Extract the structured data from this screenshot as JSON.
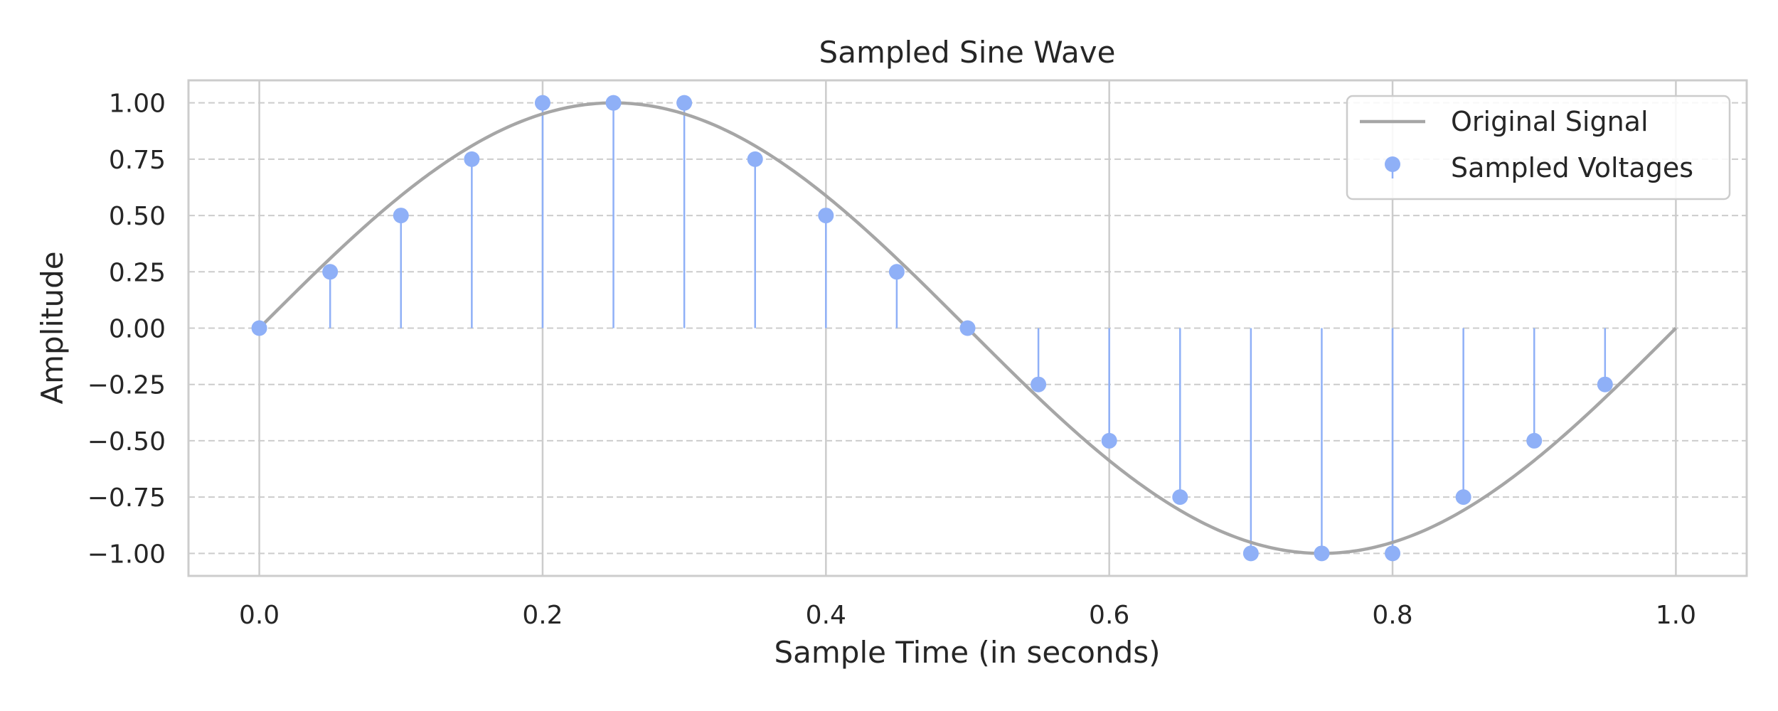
{
  "chart_data": {
    "type": "stem",
    "title": "Sampled Sine Wave",
    "xlabel": "Sample Time (in seconds)",
    "ylabel": "Amplitude",
    "xlim": [
      -0.05,
      1.05
    ],
    "ylim": [
      -1.1,
      1.1
    ],
    "xticks": [
      0.0,
      0.2,
      0.4,
      0.6,
      0.8,
      1.0
    ],
    "xtick_labels": [
      "0.0",
      "0.2",
      "0.4",
      "0.6",
      "0.8",
      "1.0"
    ],
    "yticks": [
      1.0,
      0.75,
      0.5,
      0.25,
      0.0,
      -0.25,
      -0.5,
      -0.75,
      -1.0
    ],
    "ytick_labels": [
      "1.00",
      "0.75",
      "0.50",
      "0.25",
      "0.00",
      "−0.25",
      "−0.50",
      "−0.75",
      "−1.00"
    ],
    "grid": true,
    "legend_position": "top-right",
    "series": [
      {
        "name": "Original Signal",
        "kind": "line",
        "function": "sin(2*pi*t)",
        "t_range": [
          0.0,
          1.0
        ],
        "color": "#a6a6a6"
      },
      {
        "name": "Sampled Voltages",
        "kind": "stem",
        "color": "#8fb0f7",
        "x": [
          0.0,
          0.05,
          0.1,
          0.15,
          0.2,
          0.25,
          0.3,
          0.35,
          0.4,
          0.45,
          0.5,
          0.55,
          0.6,
          0.65,
          0.7,
          0.75,
          0.8,
          0.85,
          0.9,
          0.95
        ],
        "y": [
          0.0,
          0.25,
          0.5,
          0.75,
          1.0,
          1.0,
          1.0,
          0.75,
          0.5,
          0.25,
          0.0,
          -0.25,
          -0.5,
          -0.75,
          -1.0,
          -1.0,
          -1.0,
          -0.75,
          -0.5,
          -0.25
        ]
      }
    ]
  }
}
